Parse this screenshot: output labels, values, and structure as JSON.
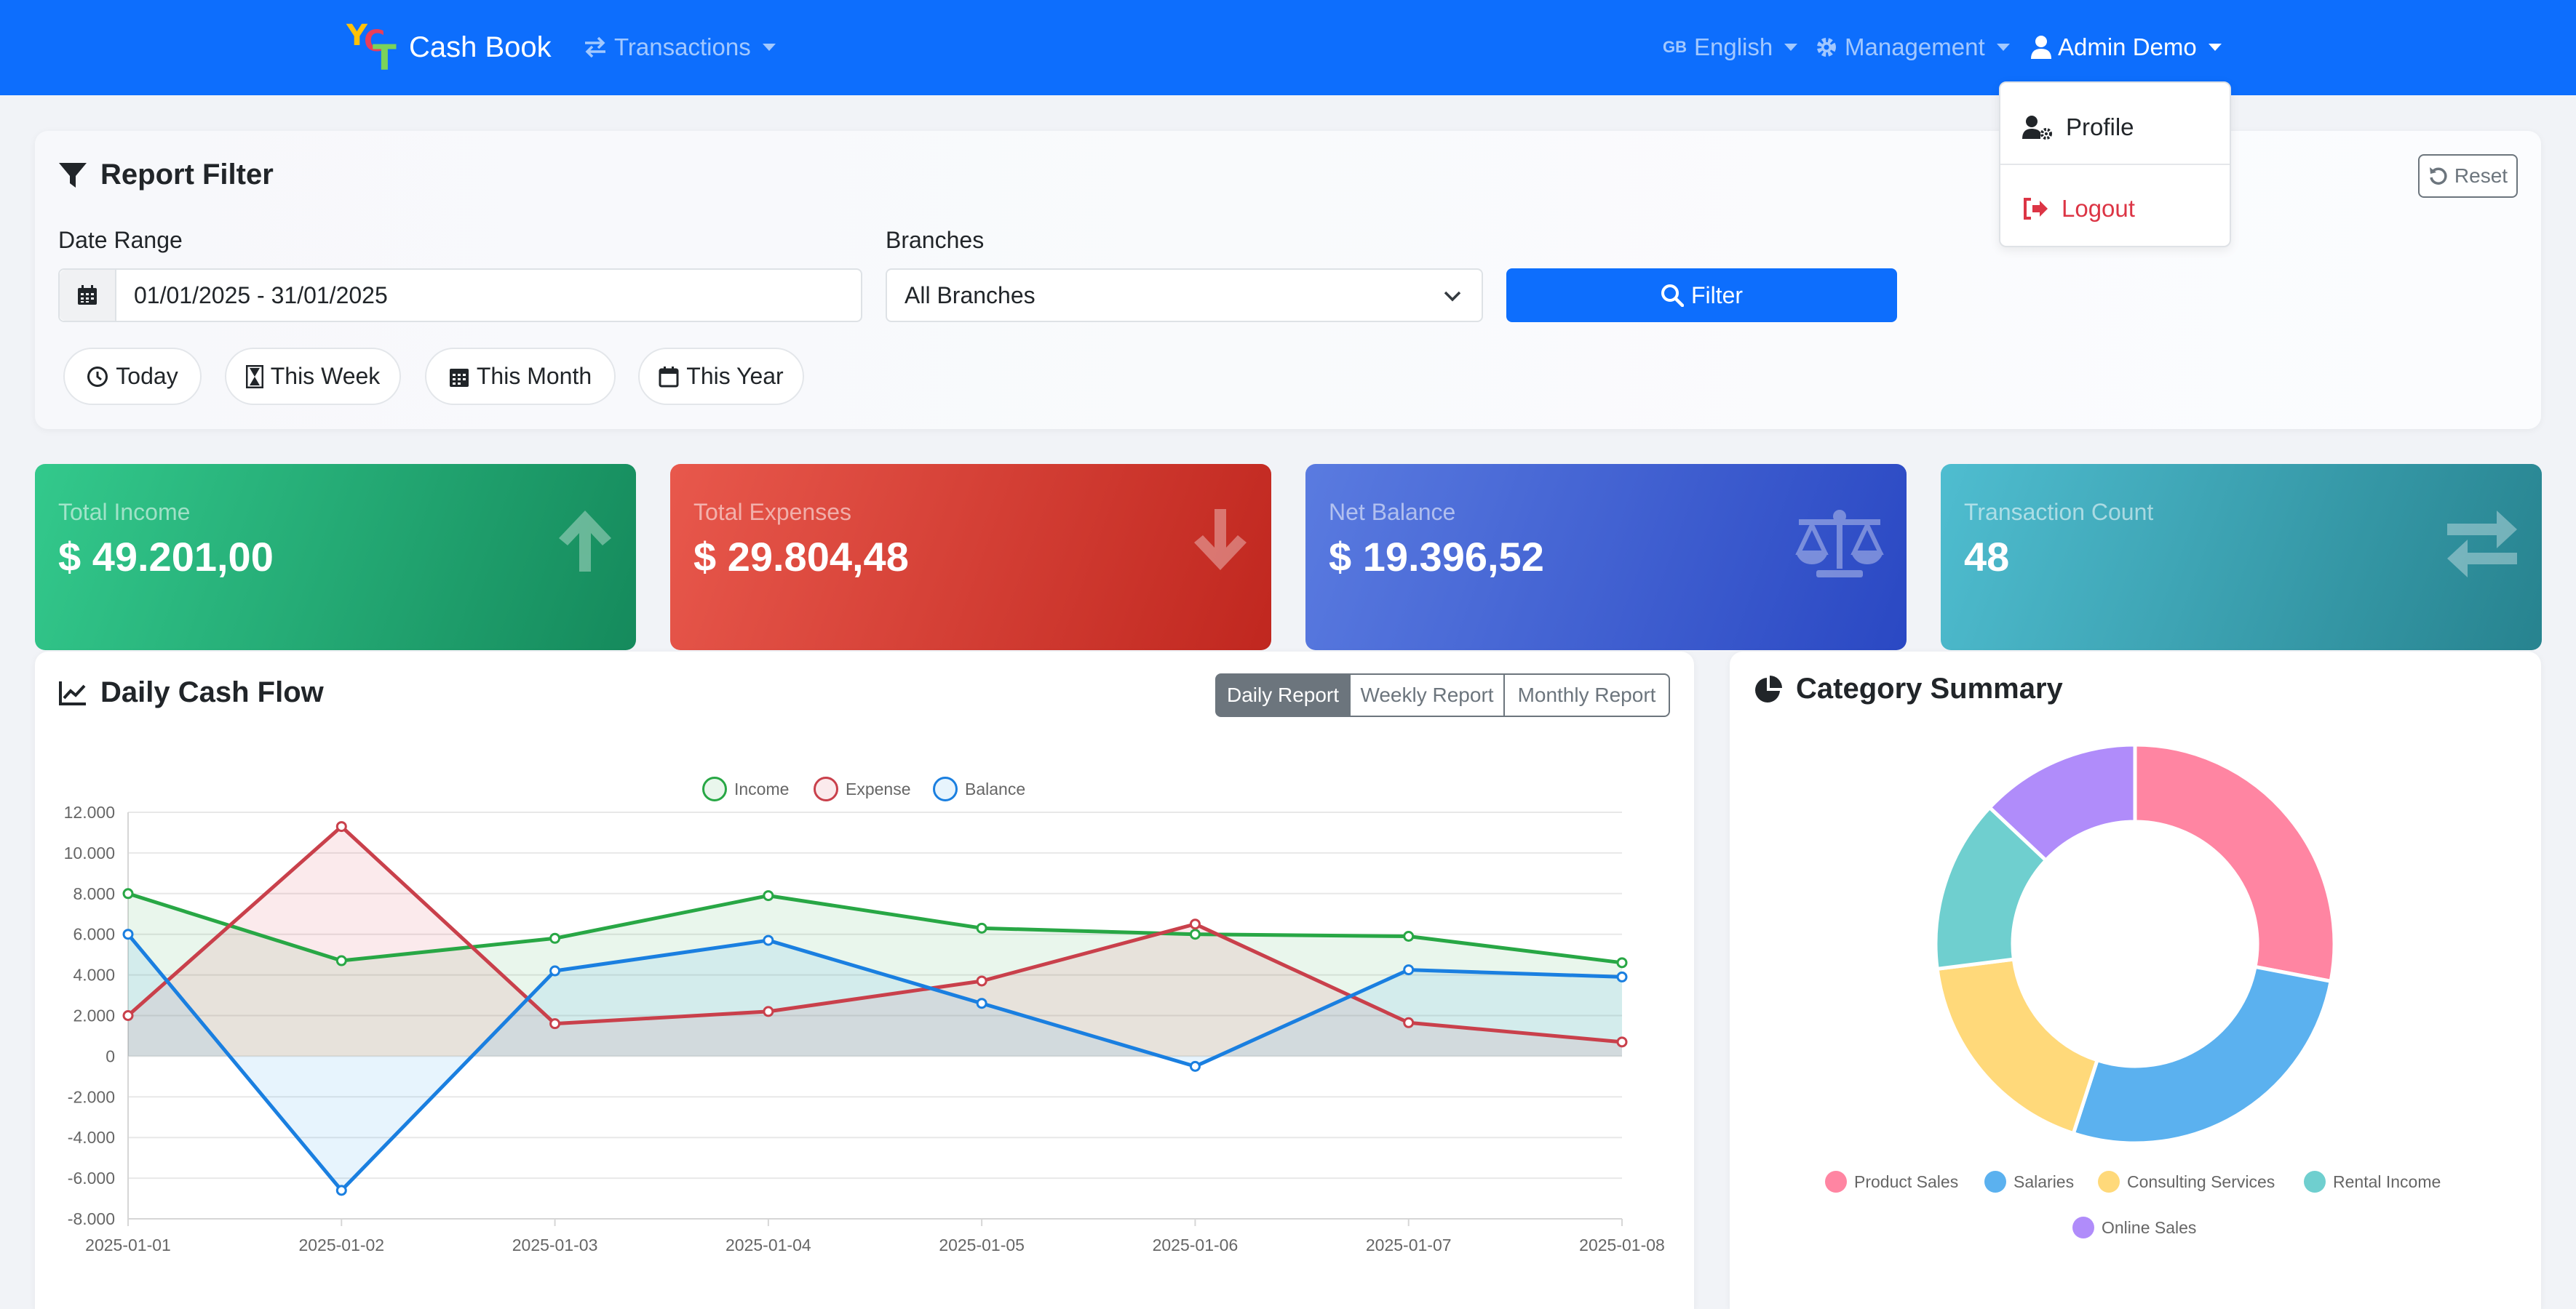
{
  "navbar": {
    "brand": "Cash Book",
    "transactions": "Transactions",
    "language_flag": "GB",
    "language": "English",
    "management": "Management",
    "user": "Admin Demo"
  },
  "user_menu": {
    "profile": "Profile",
    "logout": "Logout"
  },
  "filter": {
    "title": "Report Filter",
    "date_range_label": "Date Range",
    "date_range_value": "01/01/2025 - 31/01/2025",
    "branches_label": "Branches",
    "branches_value": "All Branches",
    "filter_button": "Filter",
    "reset_button": "Reset",
    "quick": [
      "Today",
      "This Week",
      "This Month",
      "This Year"
    ]
  },
  "stats": [
    {
      "label": "Total Income",
      "value": "$ 49.201,00",
      "gradient": [
        "#33c98c",
        "#158a5c"
      ]
    },
    {
      "label": "Total Expenses",
      "value": "$ 29.804,48",
      "gradient": [
        "#e8584c",
        "#c0271f"
      ]
    },
    {
      "label": "Net Balance",
      "value": "$ 19.396,52",
      "gradient": [
        "#5a7be0",
        "#2a48c3"
      ]
    },
    {
      "label": "Transaction Count",
      "value": "48",
      "gradient": [
        "#4fbdd0",
        "#27838f"
      ]
    }
  ],
  "daily_cash_flow": {
    "title": "Daily Cash Flow",
    "tabs": [
      "Daily Report",
      "Weekly Report",
      "Monthly Report"
    ],
    "active_tab": "Daily Report"
  },
  "chart_data": [
    {
      "type": "line",
      "title": "",
      "x": [
        "2025-01-01",
        "2025-01-02",
        "2025-01-03",
        "2025-01-04",
        "2025-01-05",
        "2025-01-06",
        "2025-01-07",
        "2025-01-08"
      ],
      "ylim": [
        -8000,
        12000
      ],
      "yticks": [
        "12.000",
        "10.000",
        "8.000",
        "6.000",
        "4.000",
        "2.000",
        "0",
        "-2.000",
        "-4.000",
        "-6.000",
        "-8.000"
      ],
      "legend_position": "top",
      "grid": true,
      "series": [
        {
          "name": "Income",
          "color": "#28a745",
          "fill": "rgba(40,167,69,0.10)",
          "values": [
            8000,
            4700,
            5800,
            7900,
            6300,
            6000,
            5900,
            4600
          ]
        },
        {
          "name": "Expense",
          "color": "#c9404b",
          "fill": "rgba(220,53,69,0.10)",
          "values": [
            2000,
            11300,
            1600,
            2200,
            3700,
            6500,
            1650,
            700
          ]
        },
        {
          "name": "Balance",
          "color": "#1a7fe0",
          "fill": "rgba(54,162,235,0.12)",
          "values": [
            6000,
            -6600,
            4200,
            5700,
            2600,
            -500,
            4250,
            3900
          ]
        }
      ]
    },
    {
      "type": "pie",
      "title": "Category Summary",
      "legend_position": "bottom",
      "labels": [
        "Product Sales",
        "Salaries",
        "Consulting Services",
        "Rental Income",
        "Online Sales"
      ],
      "values": [
        28,
        27,
        18,
        14,
        13
      ],
      "colors": [
        "#ff85a2",
        "#5bb1ef",
        "#ffd97a",
        "#6fcfcf",
        "#b08cfa"
      ]
    }
  ]
}
